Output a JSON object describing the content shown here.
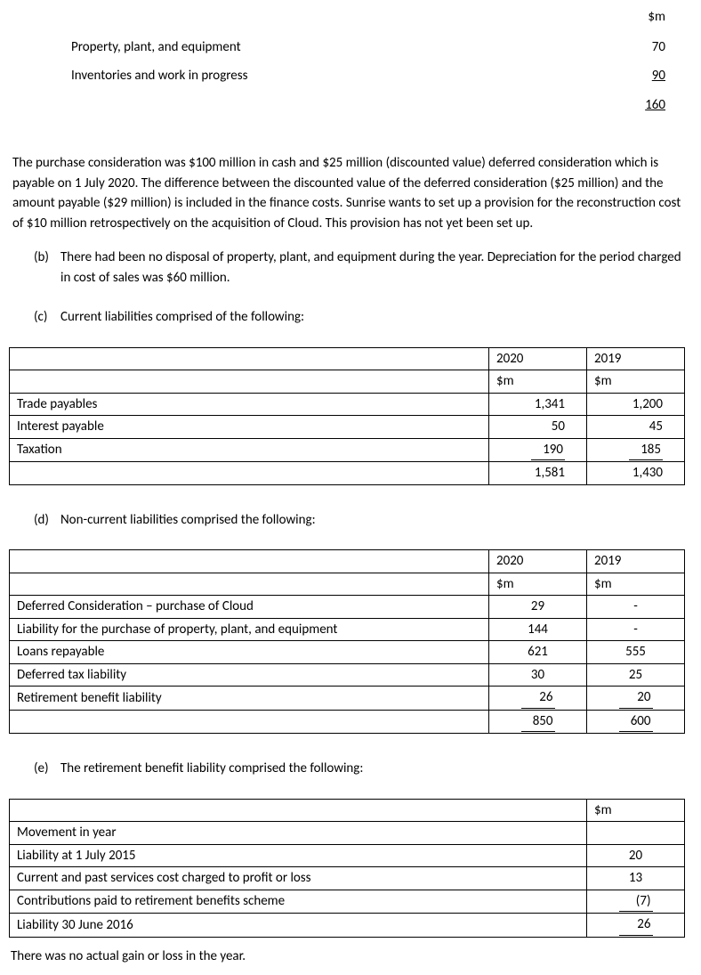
{
  "topTable": {
    "header": "$m",
    "rows": [
      {
        "label": "Property, plant, and equipment",
        "value": "70",
        "underline": false
      },
      {
        "label": "Inventories and work in progress",
        "value": "90",
        "underline": true
      }
    ],
    "total": "160"
  },
  "paragraph1": "The purchase consideration was $100 million in cash and $25 million (discounted value) deferred consideration which is payable on 1 July 2020. The difference between the discounted value of the deferred consideration ($25 million) and the amount payable ($29 million) is included in the finance costs. Sunrise wants to set up a provision for the reconstruction cost of $10 million retrospectively on the acquisition of Cloud. This provision has not yet been set up.",
  "noteB": {
    "marker": "(b)",
    "text": "There had been no disposal of property, plant, and equipment during the year. Depreciation for the period charged in cost of sales was $60 million."
  },
  "noteC": {
    "marker": "(c)",
    "text": "Current liabilities comprised of the following:"
  },
  "tableC": {
    "headers": {
      "col1": "",
      "col2": "2020",
      "col3": "2019"
    },
    "units": {
      "col2": "$m",
      "col3": "$m"
    },
    "rows": [
      {
        "label": "Trade payables",
        "v2020": "1,341",
        "v2019": "1,200",
        "sub": false
      },
      {
        "label": "Interest payable",
        "v2020": "50",
        "v2019": "45",
        "sub": false
      },
      {
        "label": "Taxation",
        "v2020": "190",
        "v2019": "185",
        "sub": true
      }
    ],
    "total": {
      "v2020": "1,581",
      "v2019": "1,430"
    }
  },
  "noteD": {
    "marker": "(d)",
    "text": "Non-current liabilities comprised the following:"
  },
  "tableD": {
    "headers": {
      "col2": "2020",
      "col3": "2019"
    },
    "units": {
      "col2": "$m",
      "col3": "$m"
    },
    "rows": [
      {
        "label": "Deferred Consideration – purchase of Cloud",
        "v2020": "29",
        "v2019": "-",
        "sub": false
      },
      {
        "label": "Liability for the purchase of property, plant, and equipment",
        "v2020": "144",
        "v2019": "-",
        "sub": false
      },
      {
        "label": "Loans repayable",
        "v2020": "621",
        "v2019": "555",
        "sub": false
      },
      {
        "label": "Deferred tax liability",
        "v2020": "30",
        "v2019": "25",
        "sub": false
      },
      {
        "label": "Retirement benefit liability",
        "v2020": "26",
        "v2019": "20",
        "sub": true
      }
    ],
    "total": {
      "v2020": "850",
      "v2019": "600"
    }
  },
  "noteE": {
    "marker": "(e)",
    "text": "The retirement benefit liability comprised the following:"
  },
  "tableE": {
    "header": "$m",
    "rows": [
      {
        "label": "Movement in year",
        "value": ""
      },
      {
        "label": "Liability at 1 July 2015",
        "value": "20"
      },
      {
        "label": "Current and past services cost charged to profit or loss",
        "value": "13"
      },
      {
        "label": "Contributions paid to retirement benefits scheme",
        "value": "(7)",
        "sub": true
      },
      {
        "label": " Liability 30 June 2016",
        "value": "26",
        "sub": true
      }
    ]
  },
  "footer": "There was no actual gain or loss in the year."
}
